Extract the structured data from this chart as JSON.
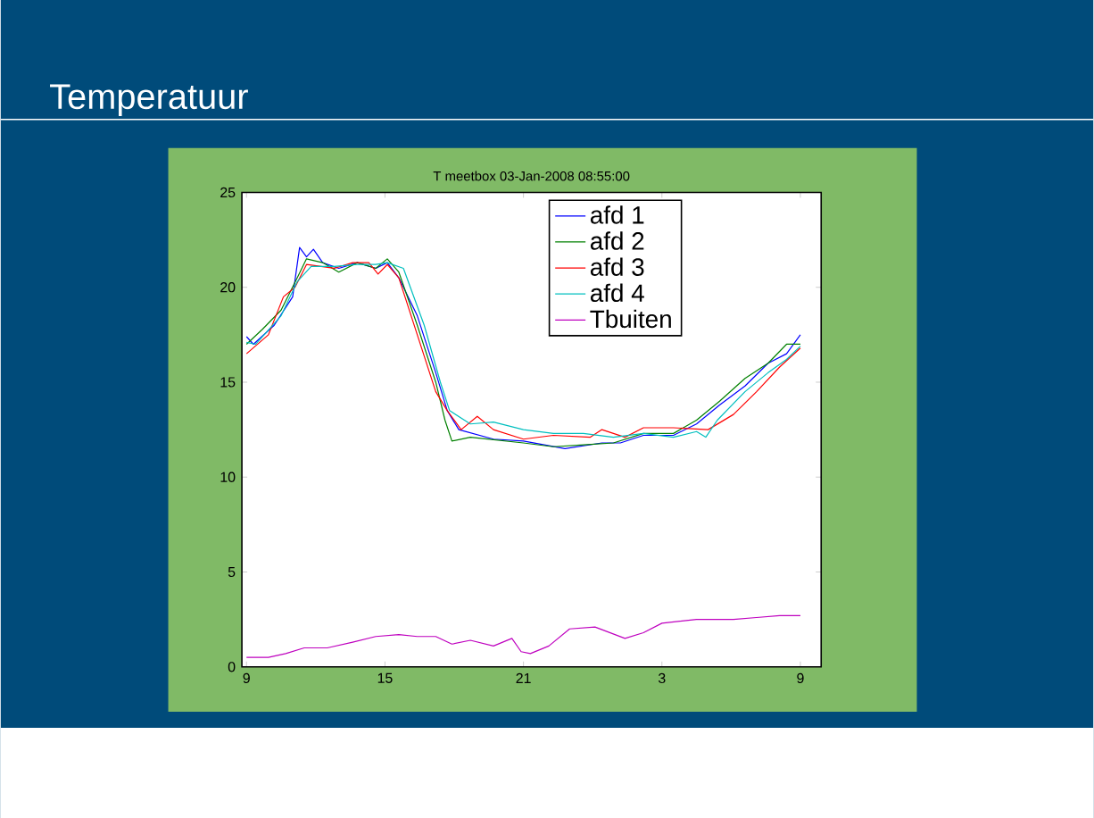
{
  "chart_data": {
    "type": "line",
    "title": "Temperatuur",
    "subtitle": "T meetbox     03-Jan-2008 08:55:00",
    "xlim": [
      "2008-01-02T08:48",
      "2008-01-03T09:54"
    ],
    "xticks": [
      {
        "value": "2008-01-02T09:00",
        "label": "9"
      },
      {
        "value": "2008-01-02T15:00",
        "label": "15"
      },
      {
        "value": "2008-01-02T21:00",
        "label": "21"
      },
      {
        "value": "2008-01-03T03:00",
        "label": "3"
      },
      {
        "value": "2008-01-03T09:00",
        "label": "9"
      }
    ],
    "ylim": [
      0,
      25
    ],
    "yticks": [
      0,
      5,
      10,
      15,
      20,
      25
    ],
    "legend": "top right",
    "grid": false,
    "marker": "none",
    "line_style": "solid",
    "series": [
      {
        "name": "afd 1",
        "color": "#0000ff",
        "x": [
          "2008-01-02T09:00",
          "2008-01-02T09:18",
          "2008-01-02T10:12",
          "2008-01-02T11:00",
          "2008-01-02T11:18",
          "2008-01-02T11:36",
          "2008-01-02T11:54",
          "2008-01-02T12:18",
          "2008-01-02T13:00",
          "2008-01-02T13:48",
          "2008-01-02T14:36",
          "2008-01-02T15:06",
          "2008-01-02T15:36",
          "2008-01-02T16:24",
          "2008-01-02T17:12",
          "2008-01-02T17:42",
          "2008-01-02T18:12",
          "2008-01-02T19:42",
          "2008-01-02T21:00",
          "2008-01-02T22:48",
          "2008-01-03T00:24",
          "2008-01-03T01:12",
          "2008-01-03T02:12",
          "2008-01-03T03:30",
          "2008-01-03T04:30",
          "2008-01-03T05:30",
          "2008-01-03T06:36",
          "2008-01-03T07:36",
          "2008-01-03T08:24",
          "2008-01-03T09:00"
        ],
        "values": [
          17.4,
          17.0,
          18.0,
          19.5,
          22.1,
          21.6,
          22.0,
          21.3,
          21.0,
          21.3,
          21.0,
          21.3,
          20.5,
          18.5,
          15.5,
          13.5,
          12.5,
          12.0,
          11.9,
          11.5,
          11.8,
          11.8,
          12.2,
          12.2,
          12.8,
          13.8,
          14.8,
          16.0,
          16.5,
          17.5
        ]
      },
      {
        "name": "afd 2",
        "color": "#008000",
        "x": [
          "2008-01-02T09:00",
          "2008-01-02T09:42",
          "2008-01-02T10:30",
          "2008-01-02T11:12",
          "2008-01-02T11:36",
          "2008-01-02T12:18",
          "2008-01-02T13:00",
          "2008-01-02T13:48",
          "2008-01-02T14:36",
          "2008-01-02T15:06",
          "2008-01-02T15:36",
          "2008-01-02T16:24",
          "2008-01-02T17:12",
          "2008-01-02T17:36",
          "2008-01-02T17:54",
          "2008-01-02T18:42",
          "2008-01-02T21:00",
          "2008-01-02T22:18",
          "2008-01-02T23:36",
          "2008-01-03T00:54",
          "2008-01-03T02:12",
          "2008-01-03T03:30",
          "2008-01-03T04:30",
          "2008-01-03T05:30",
          "2008-01-03T06:36",
          "2008-01-03T07:36",
          "2008-01-03T08:24",
          "2008-01-03T09:00"
        ],
        "values": [
          17.0,
          17.8,
          18.8,
          20.5,
          21.5,
          21.3,
          20.8,
          21.3,
          21.0,
          21.5,
          20.8,
          18.0,
          15.0,
          13.0,
          11.9,
          12.1,
          11.8,
          11.6,
          11.7,
          11.8,
          12.3,
          12.3,
          13.0,
          14.0,
          15.2,
          16.0,
          17.0,
          17.0
        ]
      },
      {
        "name": "afd 3",
        "color": "#ff0000",
        "x": [
          "2008-01-02T09:00",
          "2008-01-02T09:57",
          "2008-01-02T10:36",
          "2008-01-02T11:06",
          "2008-01-02T11:36",
          "2008-01-02T12:48",
          "2008-01-02T13:36",
          "2008-01-02T14:18",
          "2008-01-02T14:42",
          "2008-01-02T15:06",
          "2008-01-02T15:36",
          "2008-01-02T16:24",
          "2008-01-02T17:12",
          "2008-01-02T17:42",
          "2008-01-02T18:18",
          "2008-01-02T19:00",
          "2008-01-02T19:42",
          "2008-01-02T21:00",
          "2008-01-02T22:18",
          "2008-01-02T23:54",
          "2008-01-03T00:24",
          "2008-01-03T01:24",
          "2008-01-03T02:12",
          "2008-01-03T03:30",
          "2008-01-03T05:00",
          "2008-01-03T06:06",
          "2008-01-03T07:06",
          "2008-01-03T08:06",
          "2008-01-03T09:00"
        ],
        "values": [
          16.5,
          17.5,
          19.5,
          20.0,
          21.2,
          21.0,
          21.3,
          21.3,
          20.7,
          21.2,
          20.5,
          17.5,
          14.5,
          13.5,
          12.5,
          13.2,
          12.5,
          12.0,
          12.2,
          12.1,
          12.5,
          12.1,
          12.6,
          12.6,
          12.5,
          13.3,
          14.5,
          15.8,
          16.8
        ]
      },
      {
        "name": "afd 4",
        "color": "#00bfbf",
        "x": [
          "2008-01-02T09:00",
          "2008-01-02T09:24",
          "2008-01-02T10:30",
          "2008-01-02T11:12",
          "2008-01-02T11:48",
          "2008-01-02T12:48",
          "2008-01-02T13:48",
          "2008-01-02T14:36",
          "2008-01-02T15:06",
          "2008-01-02T15:48",
          "2008-01-02T16:42",
          "2008-01-02T17:24",
          "2008-01-02T17:48",
          "2008-01-02T18:42",
          "2008-01-02T19:42",
          "2008-01-02T21:00",
          "2008-01-02T22:18",
          "2008-01-02T23:36",
          "2008-01-03T00:54",
          "2008-01-03T02:12",
          "2008-01-03T03:30",
          "2008-01-03T04:30",
          "2008-01-03T04:54",
          "2008-01-03T05:24",
          "2008-01-03T06:36",
          "2008-01-03T07:36",
          "2008-01-03T08:24",
          "2008-01-03T09:00"
        ],
        "values": [
          17.1,
          17.0,
          18.5,
          20.3,
          21.1,
          21.1,
          21.2,
          21.2,
          21.3,
          21.0,
          18.0,
          15.0,
          13.5,
          12.8,
          12.9,
          12.5,
          12.3,
          12.3,
          12.1,
          12.3,
          12.1,
          12.4,
          12.1,
          13.0,
          14.5,
          15.5,
          16.2,
          16.9
        ]
      },
      {
        "name": "Tbuiten",
        "color": "#bf00bf",
        "x": [
          "2008-01-02T09:00",
          "2008-01-02T09:57",
          "2008-01-02T10:42",
          "2008-01-02T11:30",
          "2008-01-02T12:30",
          "2008-01-02T13:36",
          "2008-01-02T14:36",
          "2008-01-02T15:36",
          "2008-01-02T16:24",
          "2008-01-02T17:12",
          "2008-01-02T17:54",
          "2008-01-02T18:42",
          "2008-01-02T19:42",
          "2008-01-02T20:30",
          "2008-01-02T20:54",
          "2008-01-02T21:18",
          "2008-01-02T22:06",
          "2008-01-02T23:00",
          "2008-01-03T00:06",
          "2008-01-03T01:24",
          "2008-01-03T02:12",
          "2008-01-03T03:00",
          "2008-01-03T04:30",
          "2008-01-03T06:06",
          "2008-01-03T07:06",
          "2008-01-03T08:06",
          "2008-01-03T09:00"
        ],
        "values": [
          0.5,
          0.5,
          0.7,
          1.0,
          1.0,
          1.3,
          1.6,
          1.7,
          1.6,
          1.6,
          1.2,
          1.4,
          1.1,
          1.5,
          0.8,
          0.7,
          1.1,
          2.0,
          2.1,
          1.5,
          1.8,
          2.3,
          2.5,
          2.5,
          2.6,
          2.7,
          2.7
        ]
      }
    ]
  }
}
